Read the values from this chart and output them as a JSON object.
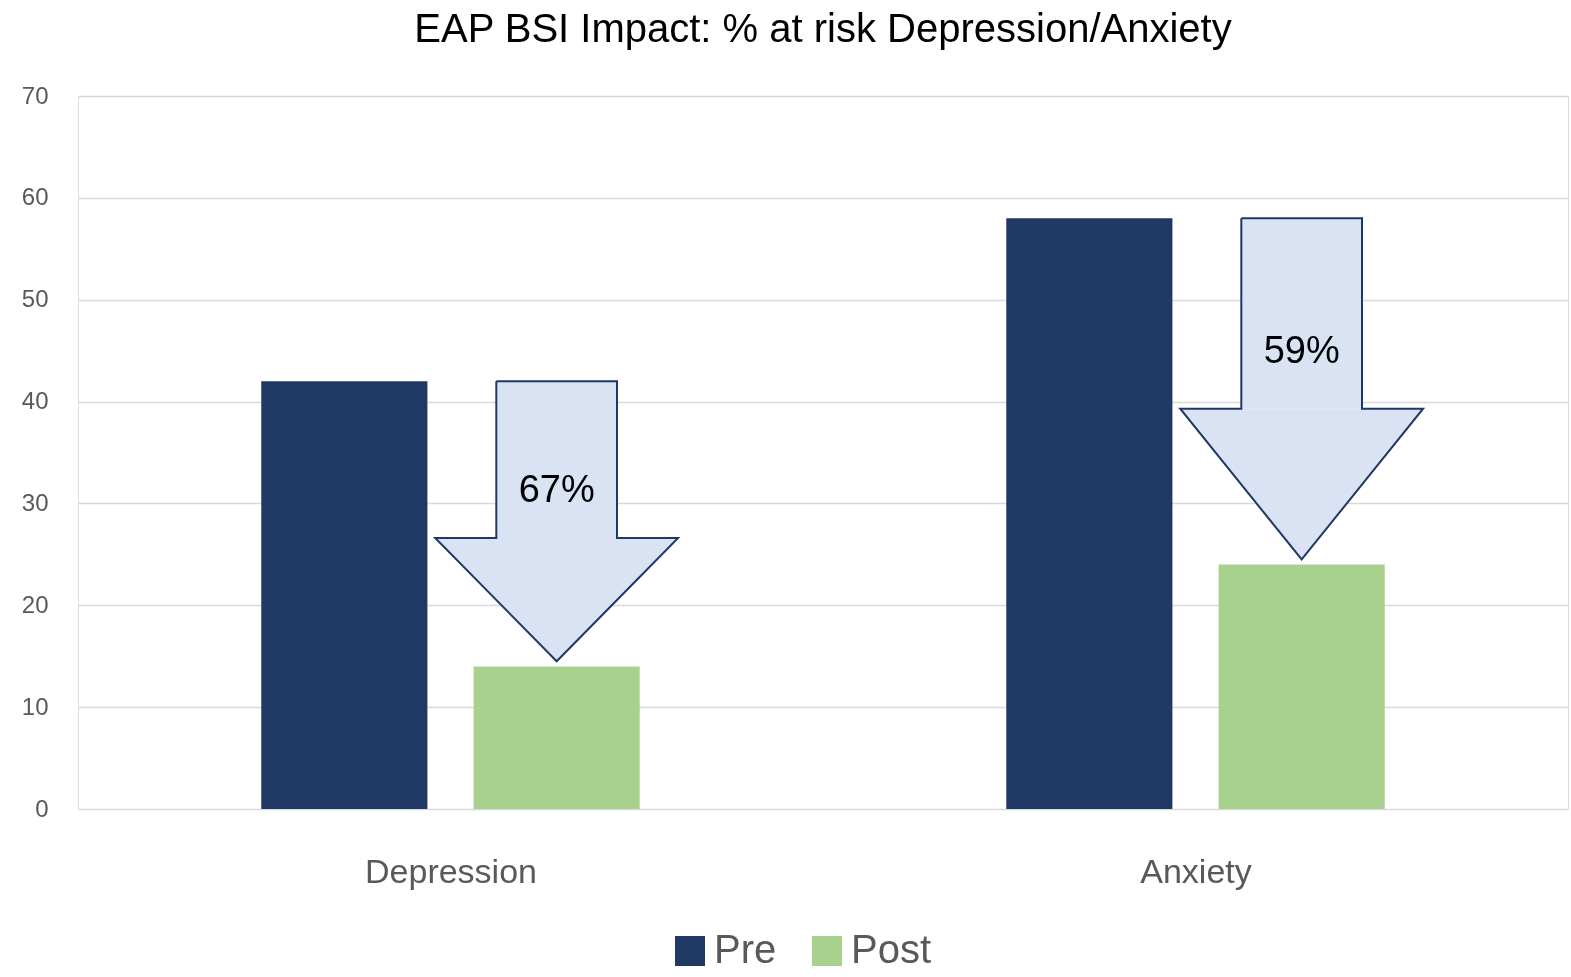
{
  "chart_data": {
    "type": "bar",
    "title": "EAP BSI Impact: % at risk Depression/Anxiety",
    "categories": [
      "Depression",
      "Anxiety"
    ],
    "series": [
      {
        "name": "Pre",
        "color": "#203864",
        "values": [
          42,
          58
        ]
      },
      {
        "name": "Post",
        "color": "#a9d18e",
        "values": [
          14,
          24
        ]
      }
    ],
    "ylim": [
      0,
      70
    ],
    "yticks": [
      0,
      10,
      20,
      30,
      40,
      50,
      60,
      70
    ],
    "grid": "y",
    "legend": "bottom",
    "annotations": [
      "67%",
      "59%"
    ]
  }
}
